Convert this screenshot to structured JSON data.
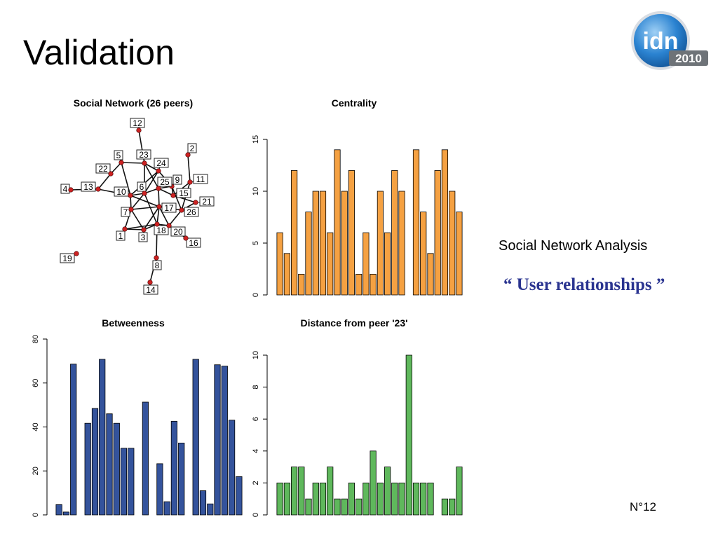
{
  "slide": {
    "title": "Validation",
    "subtitle": "Social Network Analysis",
    "quote": "“ User relationships ”",
    "page_number": "N°12",
    "logo": {
      "icon": "idn-2010-logo",
      "text": "idn",
      "year": "2010",
      "color": "#1f78c8"
    }
  },
  "chart_data": [
    {
      "type": "network",
      "title": "Social Network (26 peers)",
      "nodes": [
        "1",
        "2",
        "3",
        "4",
        "5",
        "6",
        "7",
        "8",
        "9",
        "10",
        "11",
        "12",
        "13",
        "14",
        "15",
        "16",
        "17",
        "18",
        "19",
        "20",
        "21",
        "22",
        "23",
        "24",
        "25",
        "26"
      ],
      "edges": [
        [
          "12",
          "23"
        ],
        [
          "2",
          "11"
        ],
        [
          "23",
          "5"
        ],
        [
          "23",
          "24"
        ],
        [
          "23",
          "6"
        ],
        [
          "23",
          "25"
        ],
        [
          "5",
          "22"
        ],
        [
          "5",
          "10"
        ],
        [
          "22",
          "13"
        ],
        [
          "13",
          "4"
        ],
        [
          "13",
          "10"
        ],
        [
          "24",
          "6"
        ],
        [
          "24",
          "10"
        ],
        [
          "24",
          "9"
        ],
        [
          "10",
          "6"
        ],
        [
          "10",
          "7"
        ],
        [
          "10",
          "17"
        ],
        [
          "6",
          "25"
        ],
        [
          "6",
          "7"
        ],
        [
          "6",
          "18"
        ],
        [
          "25",
          "9"
        ],
        [
          "25",
          "15"
        ],
        [
          "25",
          "17"
        ],
        [
          "9",
          "15"
        ],
        [
          "9",
          "26"
        ],
        [
          "11",
          "15"
        ],
        [
          "11",
          "26"
        ],
        [
          "15",
          "21"
        ],
        [
          "26",
          "21"
        ],
        [
          "26",
          "20"
        ],
        [
          "17",
          "7"
        ],
        [
          "17",
          "18"
        ],
        [
          "17",
          "26"
        ],
        [
          "17",
          "20"
        ],
        [
          "7",
          "1"
        ],
        [
          "7",
          "3"
        ],
        [
          "1",
          "3"
        ],
        [
          "1",
          "18"
        ],
        [
          "3",
          "18"
        ],
        [
          "3",
          "17"
        ],
        [
          "18",
          "20"
        ],
        [
          "18",
          "8"
        ],
        [
          "20",
          "16"
        ],
        [
          "8",
          "14"
        ]
      ],
      "node_color": "#cc2222"
    },
    {
      "type": "bar",
      "title": "Centrality",
      "values": [
        6,
        4,
        12,
        2,
        8,
        10,
        10,
        6,
        14,
        10,
        12,
        2,
        6,
        2,
        10,
        6,
        12,
        10,
        0,
        14,
        8,
        4,
        12,
        14,
        10,
        8
      ],
      "ylim": [
        0,
        15
      ],
      "yticks": [
        0,
        5,
        10,
        15
      ],
      "color": "#f5a142"
    },
    {
      "type": "bar",
      "title": "Betweenness",
      "values": [
        4.7,
        1.3,
        68.6,
        0,
        41.7,
        48.4,
        70.8,
        46,
        41.7,
        30.3,
        30.3,
        0,
        51.3,
        0,
        23.3,
        6,
        42.6,
        32.7,
        0,
        70.8,
        11,
        5,
        68.3,
        67.7,
        43.1,
        17.4
      ],
      "ylim": [
        0,
        80
      ],
      "yticks": [
        0,
        20,
        40,
        60,
        80
      ],
      "color": "#34539c"
    },
    {
      "type": "bar",
      "title": "Distance from peer '23'",
      "values": [
        2,
        2,
        3,
        3,
        1,
        2,
        2,
        3,
        1,
        1,
        2,
        1,
        2,
        4,
        2,
        3,
        2,
        2,
        10,
        2,
        2,
        2,
        0,
        1,
        1,
        3
      ],
      "ylim": [
        0,
        10
      ],
      "yticks": [
        0,
        2,
        4,
        6,
        8,
        10
      ],
      "color": "#5fb85c"
    }
  ]
}
